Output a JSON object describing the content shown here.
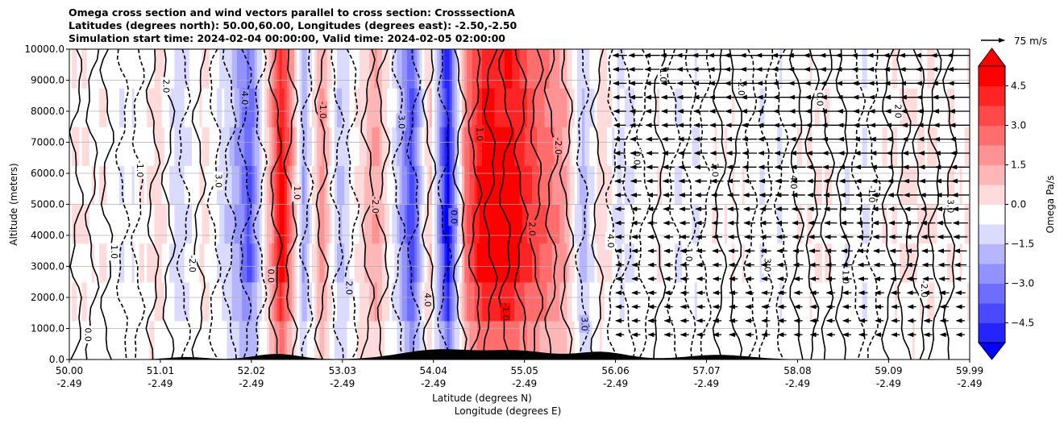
{
  "chart_data": {
    "type": "heatmap",
    "title_lines": [
      "Omega cross section and wind vectors parallel to cross section: CrosssectionA",
      "Latitudes (degrees north): 50.00,60.00, Longitudes (degrees east): -2.50,-2.50",
      "Simulation start time: 2024-02-04 00:00:00, Valid time: 2024-02-05 02:00:00"
    ],
    "ylabel": "Altitude (meters)",
    "xlabel_lines": [
      "Latitude (degrees N)",
      "Longitude (degrees E)"
    ],
    "ylim": [
      0,
      10000
    ],
    "yticks": [
      "0.0",
      "1000.0",
      "2000.0",
      "3000.0",
      "4000.0",
      "5000.0",
      "6000.0",
      "7000.0",
      "8000.0",
      "9000.0",
      "10000.0"
    ],
    "xlim": [
      50.0,
      59.99
    ],
    "xticks": [
      {
        "lat": "50.00",
        "lon": "-2.49"
      },
      {
        "lat": "51.01",
        "lon": "-2.49"
      },
      {
        "lat": "52.02",
        "lon": "-2.49"
      },
      {
        "lat": "53.03",
        "lon": "-2.49"
      },
      {
        "lat": "54.04",
        "lon": "-2.49"
      },
      {
        "lat": "55.05",
        "lon": "-2.49"
      },
      {
        "lat": "56.06",
        "lon": "-2.49"
      },
      {
        "lat": "57.07",
        "lon": "-2.49"
      },
      {
        "lat": "58.08",
        "lon": "-2.49"
      },
      {
        "lat": "59.09",
        "lon": "-2.49"
      },
      {
        "lat": "59.99",
        "lon": "-2.49"
      }
    ],
    "grid": "horizontal",
    "colorbar": {
      "label": "Omega Pa/s",
      "range": [
        -5.25,
        5.25
      ],
      "ticks": [
        "4.5",
        "3.0",
        "1.5",
        "0.0",
        "−1.5",
        "−3.0",
        "−4.5"
      ],
      "colormap": "bwr",
      "extend": "both"
    },
    "quiver_key": {
      "label": "75 m/s"
    },
    "contour_labels": [
      "0.0",
      "1.0",
      "-1.0",
      "2.0",
      "-2.0",
      "3.0",
      "4.0"
    ],
    "omega_profile": [
      {
        "lat": 50.0,
        "omega": 0.3
      },
      {
        "lat": 50.4,
        "omega": 0.2
      },
      {
        "lat": 50.7,
        "omega": -0.3
      },
      {
        "lat": 51.0,
        "omega": 0.8
      },
      {
        "lat": 51.2,
        "omega": -0.8
      },
      {
        "lat": 51.5,
        "omega": 0.6
      },
      {
        "lat": 51.8,
        "omega": -1.2
      },
      {
        "lat": 52.0,
        "omega": -3.5
      },
      {
        "lat": 52.2,
        "omega": 1.0
      },
      {
        "lat": 52.35,
        "omega": 5.5
      },
      {
        "lat": 52.5,
        "omega": 1.5
      },
      {
        "lat": 52.6,
        "omega": -2.0
      },
      {
        "lat": 52.8,
        "omega": 2.5
      },
      {
        "lat": 53.0,
        "omega": -1.5
      },
      {
        "lat": 53.2,
        "omega": 0.5
      },
      {
        "lat": 53.4,
        "omega": 2.0
      },
      {
        "lat": 53.6,
        "omega": -0.3
      },
      {
        "lat": 53.8,
        "omega": -4.0
      },
      {
        "lat": 54.0,
        "omega": 1.5
      },
      {
        "lat": 54.2,
        "omega": -5.5
      },
      {
        "lat": 54.4,
        "omega": 3.0
      },
      {
        "lat": 54.6,
        "omega": 5.5
      },
      {
        "lat": 54.9,
        "omega": 5.5
      },
      {
        "lat": 55.2,
        "omega": 3.5
      },
      {
        "lat": 55.5,
        "omega": 2.0
      },
      {
        "lat": 55.7,
        "omega": -1.5
      },
      {
        "lat": 55.9,
        "omega": 0.8
      },
      {
        "lat": 56.1,
        "omega": -0.5
      },
      {
        "lat": 56.5,
        "omega": 0.2
      },
      {
        "lat": 56.8,
        "omega": -0.3
      },
      {
        "lat": 57.3,
        "omega": 0.2
      },
      {
        "lat": 57.8,
        "omega": -0.2
      },
      {
        "lat": 58.3,
        "omega": 0.3
      },
      {
        "lat": 58.8,
        "omega": -0.2
      },
      {
        "lat": 59.3,
        "omega": 0.4
      },
      {
        "lat": 59.99,
        "omega": 0.2
      }
    ],
    "wind_vectors_lat_range": [
      56.06,
      59.99
    ],
    "wind_direction": "southward (toward lower latitude)"
  }
}
